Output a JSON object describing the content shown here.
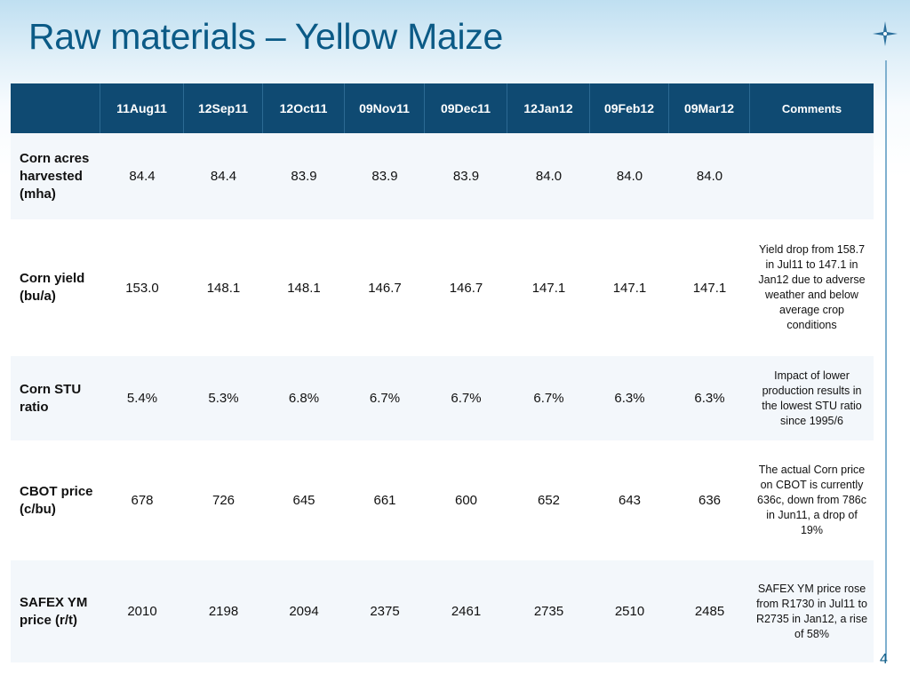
{
  "slide": {
    "title": "Raw materials – Yellow Maize",
    "page_number": "4"
  },
  "table": {
    "columns": [
      "",
      "11Aug11",
      "12Sep11",
      "12Oct11",
      "09Nov11",
      "09Dec11",
      "12Jan12",
      "09Feb12",
      "09Mar12",
      "Comments"
    ],
    "rows": [
      {
        "label": "Corn acres harvested (mha)",
        "values": [
          "84.4",
          "84.4",
          "83.9",
          "83.9",
          "83.9",
          "84.0",
          "84.0",
          "84.0"
        ],
        "comment": ""
      },
      {
        "label": "Corn yield (bu/a)",
        "values": [
          "153.0",
          "148.1",
          "148.1",
          "146.7",
          "146.7",
          "147.1",
          "147.1",
          "147.1"
        ],
        "comment": "Yield drop from 158.7 in Jul11 to 147.1 in Jan12 due to adverse weather  and below average crop conditions"
      },
      {
        "label": "Corn STU ratio",
        "values": [
          "5.4%",
          "5.3%",
          "6.8%",
          "6.7%",
          "6.7%",
          "6.7%",
          "6.3%",
          "6.3%"
        ],
        "comment": "Impact of lower production results in the lowest STU ratio since 1995/6"
      },
      {
        "label": "CBOT price (c/bu)",
        "values": [
          "678",
          "726",
          "645",
          "661",
          "600",
          "652",
          "643",
          "636"
        ],
        "comment": "The actual Corn price on CBOT is currently 636c, down from 786c in Jun11, a drop of 19%"
      },
      {
        "label": "SAFEX YM price (r/t)",
        "values": [
          "2010",
          "2198",
          "2094",
          "2375",
          "2461",
          "2735",
          "2510",
          "2485"
        ],
        "comment": "SAFEX YM price rose from R1730 in Jul11 to R2735 in Jan12, a rise of 58%"
      }
    ]
  },
  "colors": {
    "title": "#0b5a86",
    "header_bg": "#0f4a72",
    "header_text": "#ffffff",
    "row_alt_bg": "#f3f7fb"
  },
  "icons": {
    "logo": "compass-star-icon"
  }
}
